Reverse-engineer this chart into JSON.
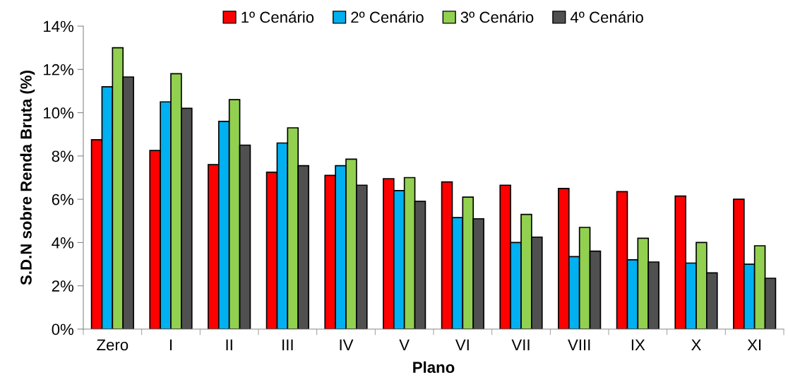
{
  "chart_data": {
    "type": "bar",
    "xlabel": "Plano",
    "ylabel": "S.D.N sobre Renda Bruta (%)",
    "categories": [
      "Zero",
      "I",
      "II",
      "III",
      "IV",
      "V",
      "VI",
      "VII",
      "VIII",
      "IX",
      "X",
      "XI"
    ],
    "series": [
      {
        "name": "1º Cenário",
        "color": "#ff0000",
        "values": [
          8.75,
          8.25,
          7.6,
          7.25,
          7.1,
          6.95,
          6.8,
          6.65,
          6.5,
          6.35,
          6.15,
          6.0
        ]
      },
      {
        "name": "2º Cenário",
        "color": "#00b0f0",
        "values": [
          11.2,
          10.5,
          9.6,
          8.6,
          7.55,
          6.4,
          5.15,
          4.0,
          3.35,
          3.2,
          3.05,
          3.0
        ]
      },
      {
        "name": "3º Cenário",
        "color": "#92d050",
        "values": [
          13.0,
          11.8,
          10.6,
          9.3,
          7.85,
          7.0,
          6.1,
          5.3,
          4.7,
          4.2,
          4.0,
          3.85
        ]
      },
      {
        "name": "4º Cenário",
        "color": "#505050",
        "values": [
          11.65,
          10.2,
          8.5,
          7.55,
          6.65,
          5.9,
          5.1,
          4.25,
          3.6,
          3.1,
          2.6,
          2.35
        ]
      }
    ],
    "ylim": [
      0,
      14
    ],
    "yticks": [
      {
        "value": 0,
        "label": "0%"
      },
      {
        "value": 2,
        "label": "2%"
      },
      {
        "value": 4,
        "label": "4%"
      },
      {
        "value": 6,
        "label": "6%"
      },
      {
        "value": 8,
        "label": "8%"
      },
      {
        "value": 10,
        "label": "10%"
      },
      {
        "value": 12,
        "label": "12%"
      },
      {
        "value": 14,
        "label": "14%"
      }
    ],
    "grid": false,
    "legend": "top"
  }
}
